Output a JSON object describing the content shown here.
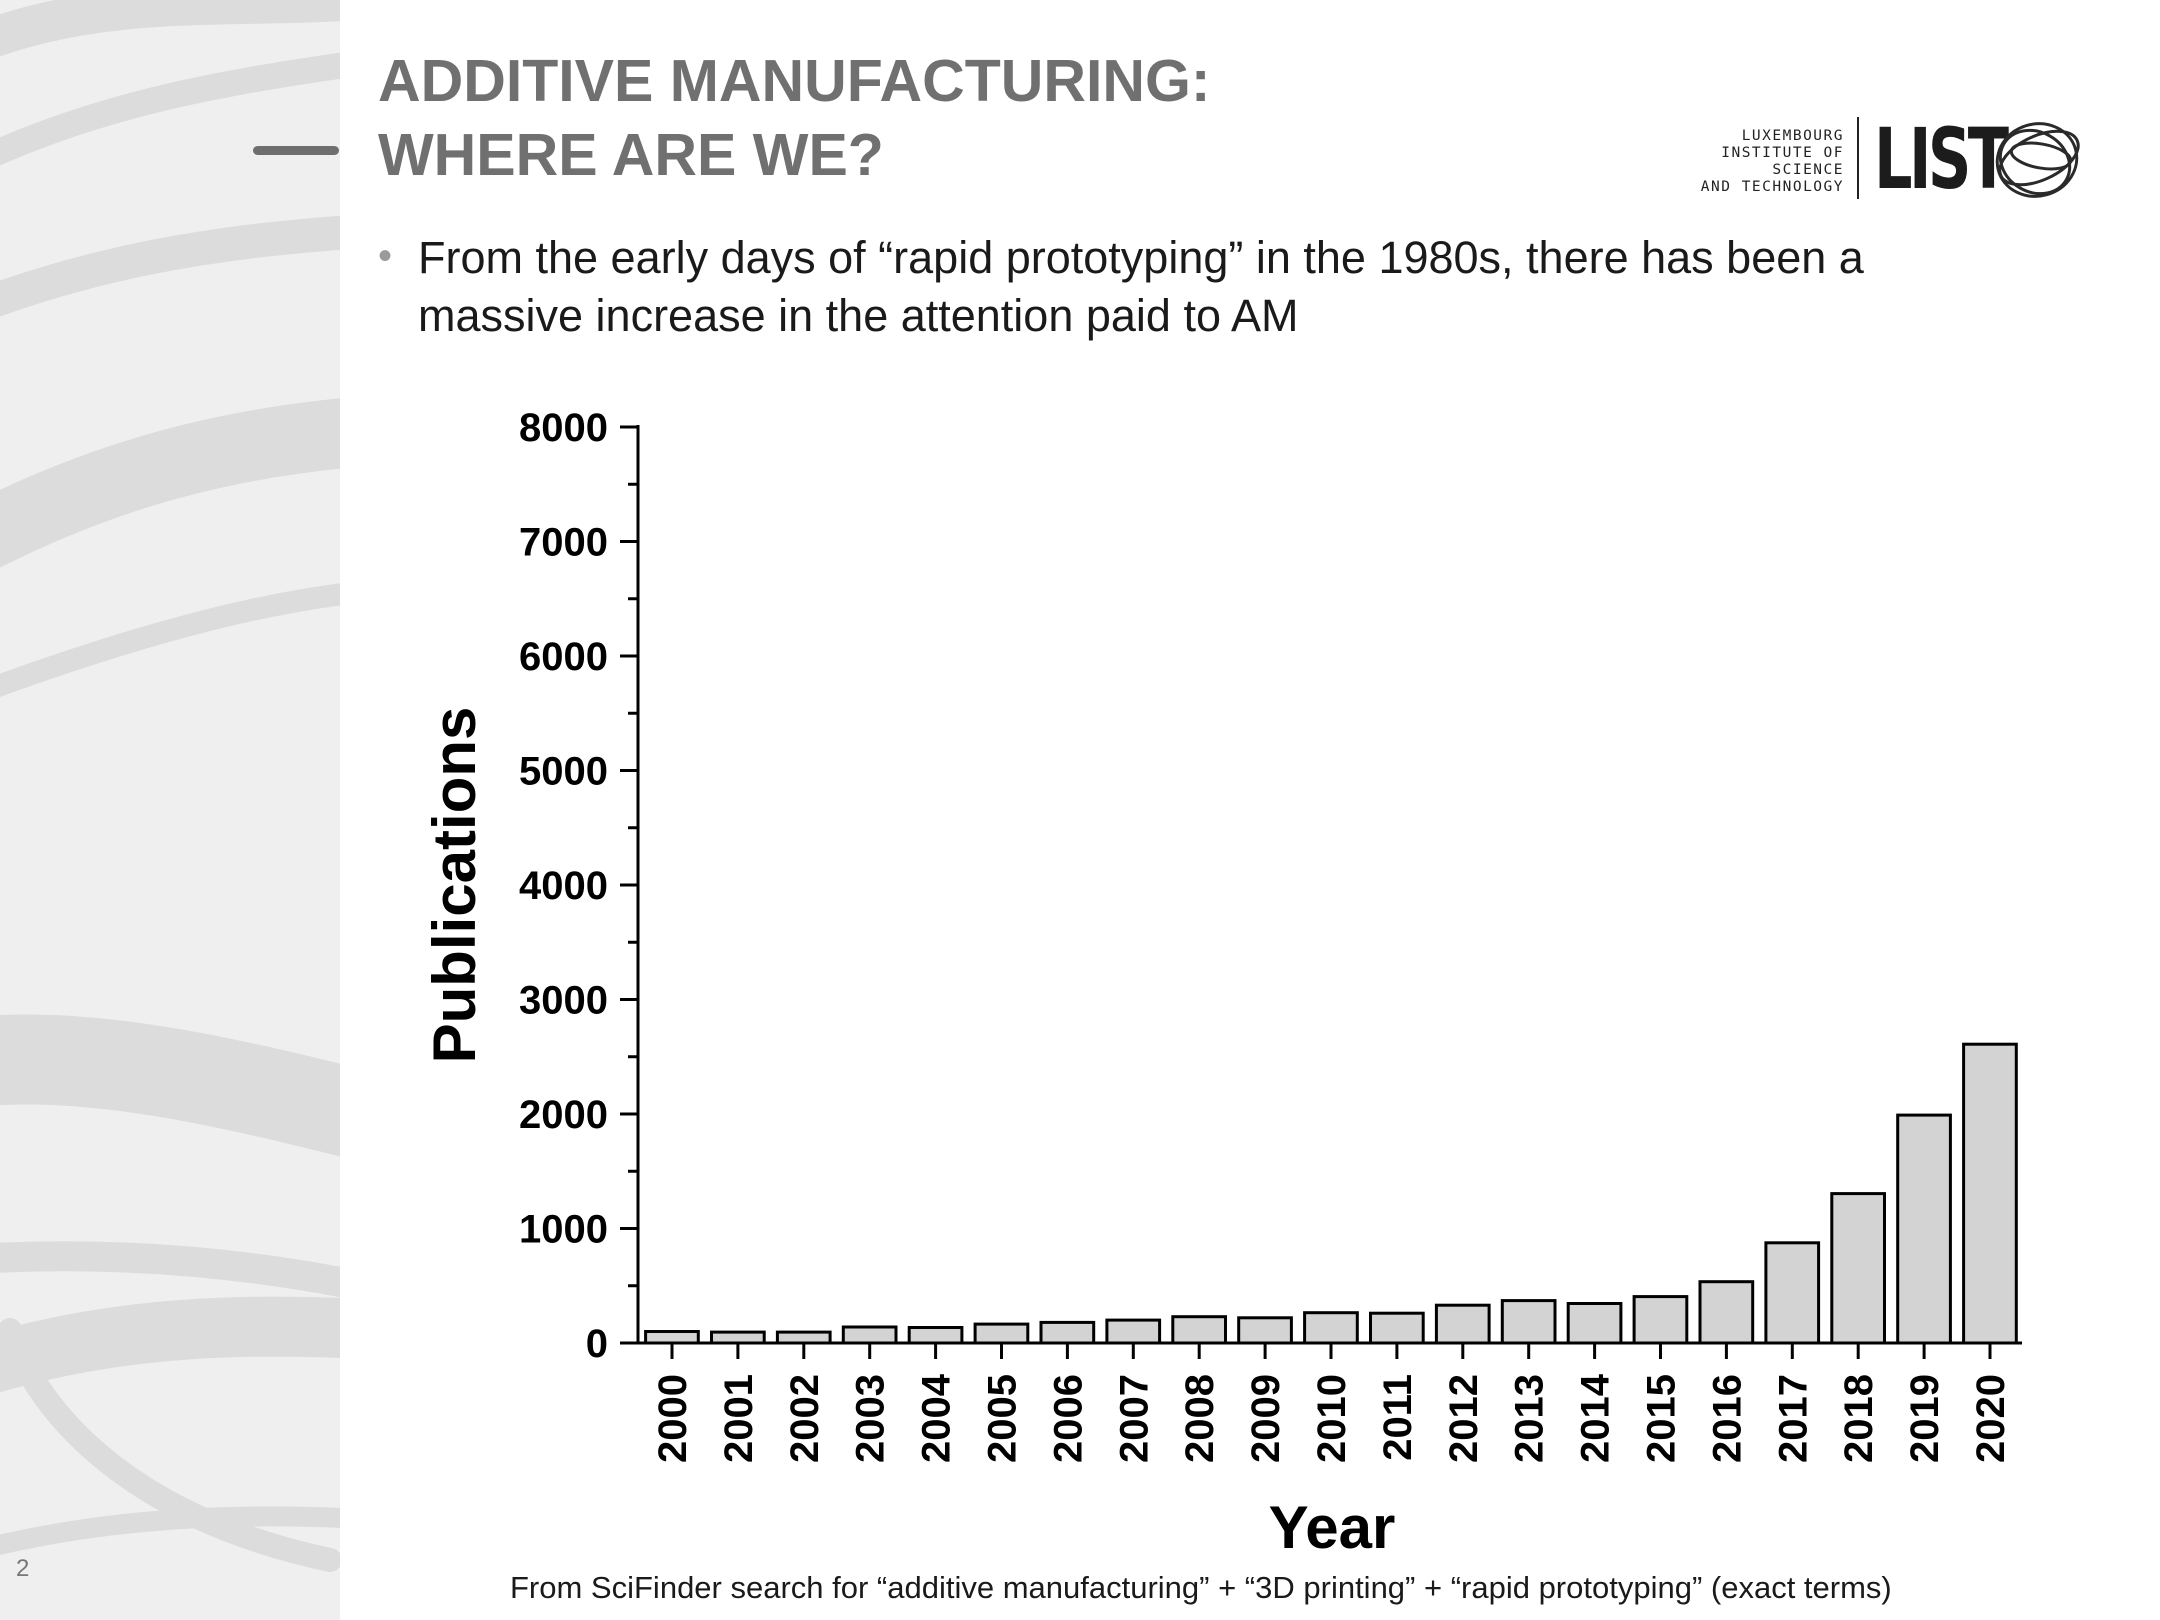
{
  "slide": {
    "title_lines": [
      "ADDITIVE MANUFACTURING:",
      "WHERE ARE WE?"
    ],
    "page_number": "2",
    "bullet": "From the early days of “rapid prototyping” in the 1980s, there has been a massive increase in the attention paid to AM",
    "footnote": "From SciFinder search for “additive manufacturing” + “3D printing” + “rapid prototyping” (exact terms)",
    "logo": {
      "org_lines": [
        "LUXEMBOURG",
        "INSTITUTE OF SCIENCE",
        "AND TECHNOLOGY"
      ],
      "mark": "LIST"
    }
  },
  "chart_data": {
    "type": "bar",
    "title": "",
    "xlabel": "Year",
    "ylabel": "Publications",
    "categories": [
      "2000",
      "2001",
      "2002",
      "2003",
      "2004",
      "2005",
      "2006",
      "2007",
      "2008",
      "2009",
      "2010",
      "2011",
      "2012",
      "2013",
      "2014",
      "2015",
      "2016",
      "2017",
      "2018",
      "2019",
      "2020"
    ],
    "values": [
      100,
      95,
      95,
      140,
      135,
      165,
      180,
      200,
      230,
      220,
      265,
      260,
      330,
      370,
      345,
      405,
      535,
      875,
      1305,
      1990,
      2610
    ],
    "ylim": [
      0,
      8000
    ],
    "yticks": [
      "0",
      "1000",
      "2000",
      "3000",
      "4000",
      "5000",
      "6000",
      "7000",
      "8000"
    ],
    "grid": false,
    "legend": "none",
    "bar_fill": "#d3d3d3",
    "bar_stroke": "#000000"
  },
  "colors": {
    "title": "#707070",
    "sidebar": "#efefef",
    "sidebar_swirl": "#dcdcdc"
  }
}
